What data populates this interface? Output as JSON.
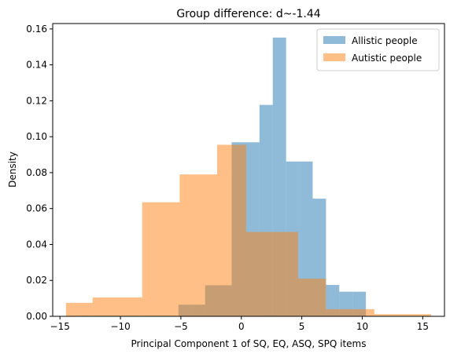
{
  "chart_data": {
    "type": "histogram",
    "title": "Group difference: d~-1.44",
    "xlabel": "Principal Component 1 of SQ, EQ, ASQ, SPQ items",
    "ylabel": "Density",
    "xlim": [
      -15.6,
      16.8
    ],
    "ylim": [
      0,
      0.163
    ],
    "x_ticks": [
      -15,
      -10,
      -5,
      0,
      5,
      10,
      15
    ],
    "y_ticks": [
      0.0,
      0.02,
      0.04,
      0.06,
      0.08,
      0.1,
      0.12,
      0.14,
      0.16
    ],
    "y_tick_labels": [
      "0.00",
      "0.02",
      "0.04",
      "0.06",
      "0.08",
      "0.10",
      "0.12",
      "0.14",
      "0.16"
    ],
    "legend_position": "top-right",
    "grid": false,
    "series": [
      {
        "name": "Allistic people",
        "color": "#1f77b4",
        "opacity": 0.5,
        "bin_edges": [
          -5.2,
          -3.0,
          -0.8,
          1.5,
          3.7,
          5.9,
          8.1,
          10.3
        ],
        "bins": [
          {
            "x0": -5.2,
            "x1": -4.1,
            "density": 0.0065
          },
          {
            "x0": -4.1,
            "x1": -3.0,
            "density": 0.0065
          },
          {
            "x0": -3.0,
            "x1": -1.9,
            "density": 0.0173
          },
          {
            "x0": -1.9,
            "x1": -0.8,
            "density": 0.0173
          },
          {
            "x0": -0.8,
            "x1": 0.4,
            "density": 0.0969
          },
          {
            "x0": 0.4,
            "x1": 1.5,
            "density": 0.0969
          },
          {
            "x0": 1.5,
            "x1": 2.6,
            "density": 0.1177
          },
          {
            "x0": 2.6,
            "x1": 3.7,
            "density": 0.1552
          },
          {
            "x0": 3.7,
            "x1": 4.8,
            "density": 0.0862
          },
          {
            "x0": 4.8,
            "x1": 5.9,
            "density": 0.0862
          },
          {
            "x0": 5.9,
            "x1": 7.0,
            "density": 0.0655
          },
          {
            "x0": 7.0,
            "x1": 8.1,
            "density": 0.0175
          },
          {
            "x0": 8.1,
            "x1": 9.2,
            "density": 0.0137
          },
          {
            "x0": 9.2,
            "x1": 10.3,
            "density": 0.0137
          }
        ]
      },
      {
        "name": "Autistic people",
        "color": "#ff7f0e",
        "opacity": 0.5,
        "bins": [
          {
            "x0": -14.5,
            "x1": -12.3,
            "density": 0.0075
          },
          {
            "x0": -12.3,
            "x1": -8.2,
            "density": 0.0105
          },
          {
            "x0": -8.2,
            "x1": -5.1,
            "density": 0.0635
          },
          {
            "x0": -5.1,
            "x1": -2.0,
            "density": 0.079
          },
          {
            "x0": -2.0,
            "x1": 0.4,
            "density": 0.0955
          },
          {
            "x0": 0.4,
            "x1": 2.5,
            "density": 0.047
          },
          {
            "x0": 2.5,
            "x1": 4.7,
            "density": 0.047
          },
          {
            "x0": 4.7,
            "x1": 7.0,
            "density": 0.021
          },
          {
            "x0": 7.0,
            "x1": 11.0,
            "density": 0.004
          },
          {
            "x0": 11.0,
            "x1": 13.5,
            "density": 0.0012
          },
          {
            "x0": 13.5,
            "x1": 15.7,
            "density": 0.0012
          }
        ]
      }
    ]
  }
}
